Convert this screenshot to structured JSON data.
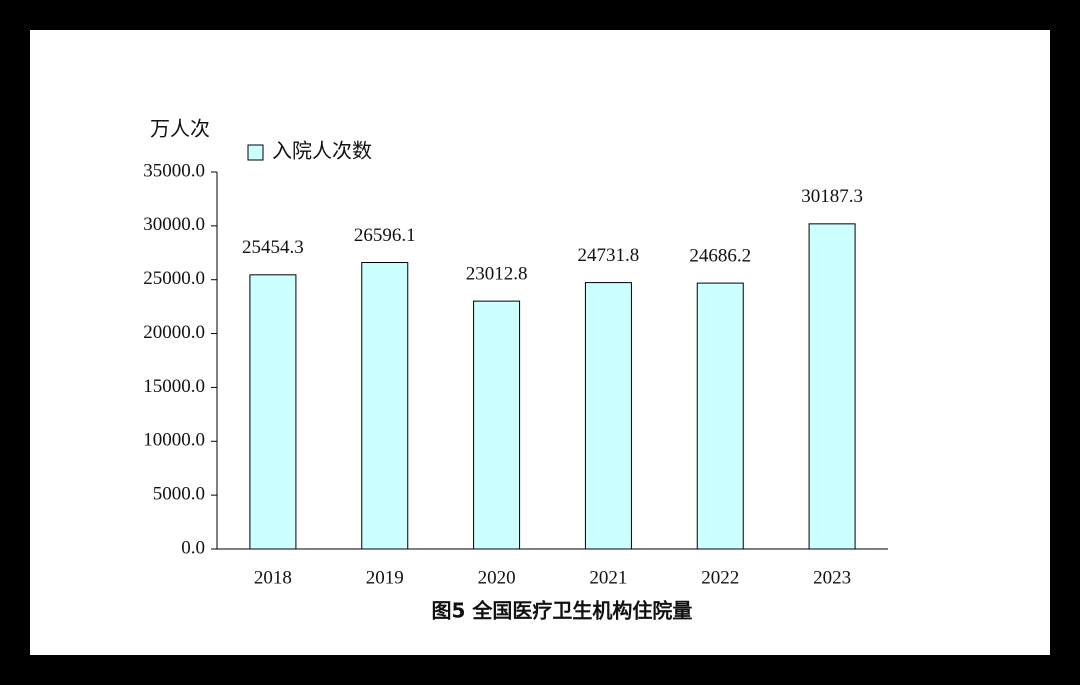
{
  "chart_data": {
    "type": "bar",
    "title": "图5  全国医疗卫生机构住院量",
    "y_label": "万人次",
    "categories": [
      "2018",
      "2019",
      "2020",
      "2021",
      "2022",
      "2023"
    ],
    "series": [
      {
        "name": "入院人次数",
        "color": "#ccffff",
        "values": [
          25454.3,
          26596.1,
          23012.8,
          24731.8,
          24686.2,
          30187.3
        ]
      }
    ],
    "ylim": [
      0,
      35000
    ],
    "yticks": [
      {
        "value": 0,
        "label": "0.0"
      },
      {
        "value": 5000,
        "label": "5000.0"
      },
      {
        "value": 10000,
        "label": "10000.0"
      },
      {
        "value": 15000,
        "label": "15000.0"
      },
      {
        "value": 20000,
        "label": "20000.0"
      },
      {
        "value": 25000,
        "label": "25000.0"
      },
      {
        "value": 30000,
        "label": "30000.0"
      },
      {
        "value": 35000,
        "label": "35000.0"
      }
    ],
    "legend": "top-left"
  }
}
